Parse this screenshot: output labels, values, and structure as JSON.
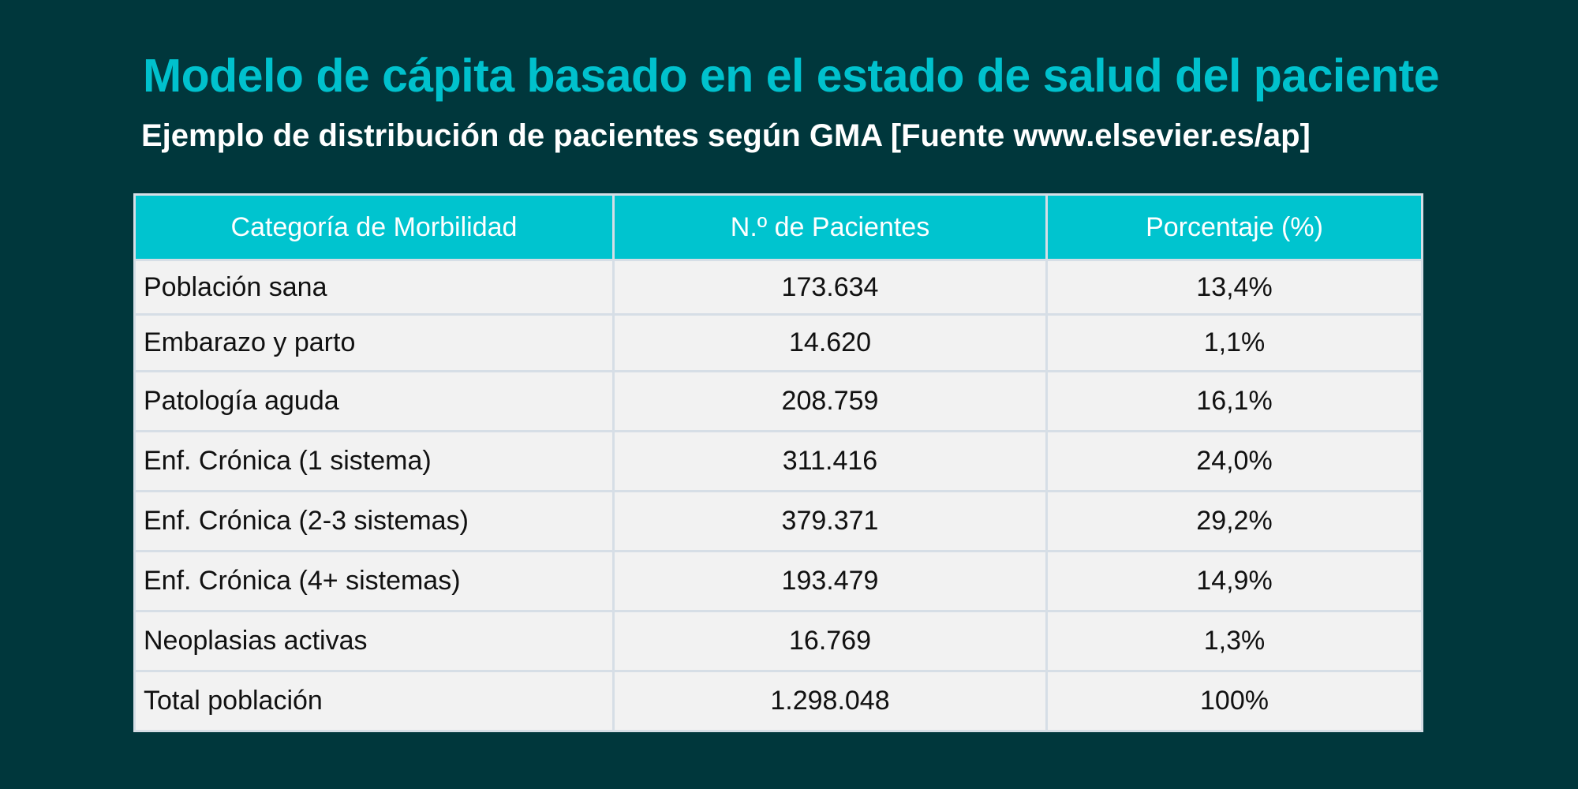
{
  "slide": {
    "title": "Modelo de cápita basado en el estado de salud del paciente",
    "subtitle": "Ejemplo de distribución de pacientes según GMA [Fuente www.elsevier.es/ap]"
  },
  "table": {
    "headers": [
      "Categoría de Morbilidad",
      "N.º de Pacientes",
      "Porcentaje (%)"
    ],
    "rows": [
      [
        "Población sana",
        "173.634",
        "13,4%"
      ],
      [
        "Embarazo y parto",
        "14.620",
        "1,1%"
      ],
      [
        "Patología aguda",
        "208.759",
        "16,1%"
      ],
      [
        "Enf. Crónica (1 sistema)",
        "311.416",
        "24,0%"
      ],
      [
        "Enf. Crónica (2-3 sistemas)",
        "379.371",
        "29,2%"
      ],
      [
        "Enf. Crónica (4+ sistemas)",
        "193.479",
        "14,9%"
      ],
      [
        "Neoplasias activas",
        "16.769",
        "1,3%"
      ],
      [
        "Total población",
        "1.298.048",
        "100%"
      ]
    ]
  },
  "colors": {
    "background": "#00373c",
    "accent": "#00c4cf",
    "cell_background": "#f2f2f2",
    "border": "#d6dee6"
  }
}
